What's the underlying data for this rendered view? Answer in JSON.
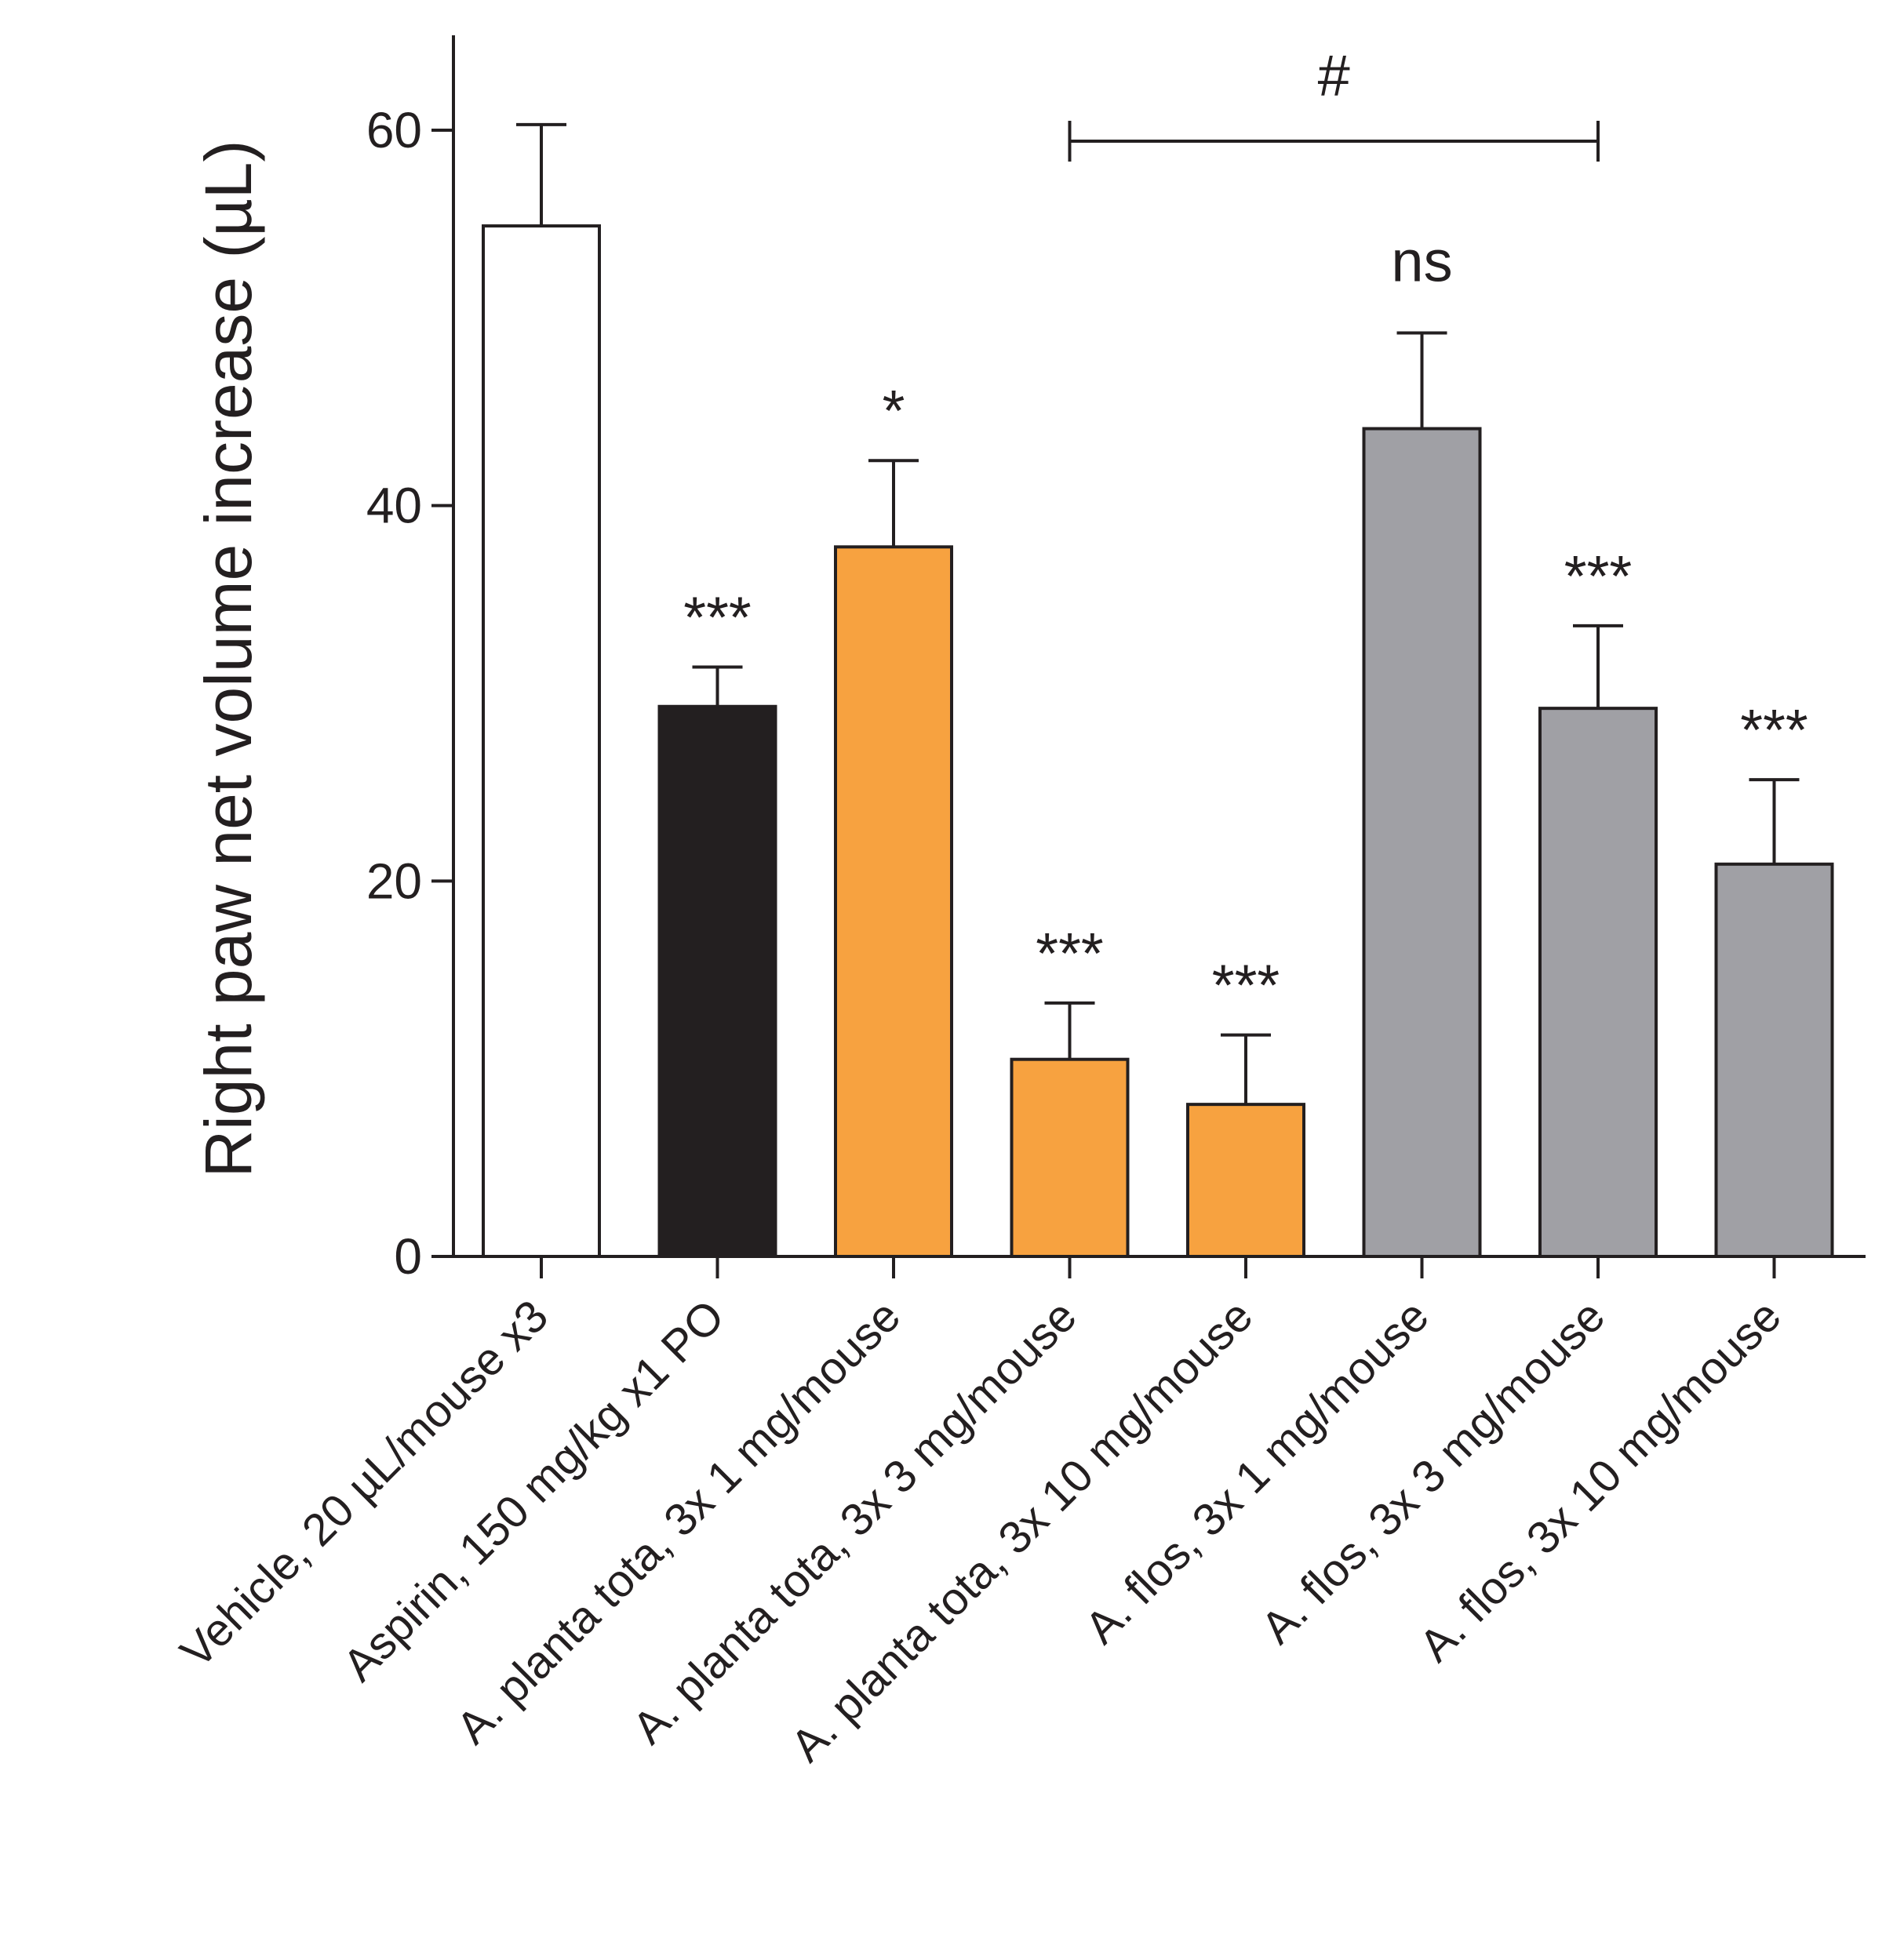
{
  "chart_data": {
    "type": "bar",
    "ylabel": "Right paw net volume increase (µL)",
    "ylim": [
      0,
      65
    ],
    "yticks": [
      0,
      20,
      40,
      60
    ],
    "grid": false,
    "categories": [
      "Vehicle, 20 µL/mouse x3",
      "Aspirin, 150 mg/kg x1 PO",
      "A. planta tota, 3x 1 mg/mouse",
      "A. planta tota, 3x 3 mg/mouse",
      "A. planta tota, 3x 10 mg/mouse",
      "A. flos, 3x 1 mg/mouse",
      "A. flos, 3x 3 mg/mouse",
      "A. flos, 3x 10 mg/mouse"
    ],
    "values": [
      54.9,
      29.3,
      37.8,
      10.5,
      8.1,
      44.1,
      29.2,
      20.9
    ],
    "errors": [
      5.4,
      2.1,
      4.6,
      3.0,
      3.7,
      5.1,
      4.4,
      4.5
    ],
    "colors": [
      "#ffffff",
      "#231f20",
      "#f7a240",
      "#f7a240",
      "#f7a240",
      "#a0a0a5",
      "#a0a0a5",
      "#a0a0a5"
    ],
    "significance": [
      "",
      "***",
      "*",
      "***",
      "***",
      "ns",
      "***",
      "***"
    ],
    "comparison": {
      "from": 3,
      "to": 6,
      "label": "#"
    }
  }
}
